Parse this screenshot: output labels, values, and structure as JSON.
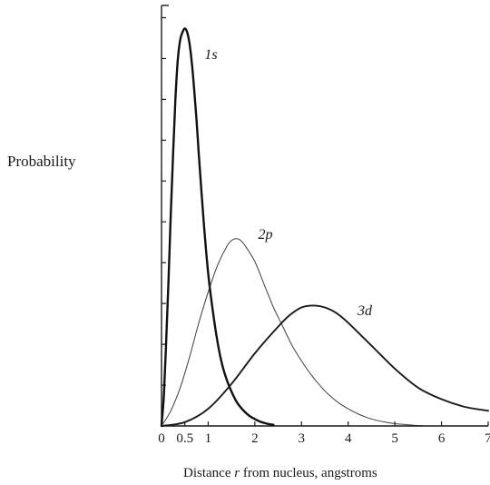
{
  "chart_data": {
    "type": "line",
    "title": "",
    "ylabel": "Probability",
    "xlabel": {
      "before": "Distance ",
      "var": "r",
      "after": " from nucleus, angstroms"
    },
    "xlim": [
      0,
      7
    ],
    "ylim": [
      0,
      1.1
    ],
    "y_ticks_unlabeled": true,
    "x_ticks": [
      {
        "value": 0,
        "label": "0"
      },
      {
        "value": 0.5,
        "label": "0.5"
      },
      {
        "value": 1,
        "label": "1"
      },
      {
        "value": 2,
        "label": "2"
      },
      {
        "value": 3,
        "label": "3"
      },
      {
        "value": 4,
        "label": "4"
      },
      {
        "value": 5,
        "label": "5"
      },
      {
        "value": 6,
        "label": "6"
      },
      {
        "value": 7,
        "label": "7"
      }
    ],
    "series": [
      {
        "name": "1s",
        "style": "thick",
        "label_at": {
          "x": 0.92,
          "y": 0.96
        },
        "x": [
          0,
          0.05,
          0.1,
          0.15,
          0.2,
          0.25,
          0.3,
          0.35,
          0.4,
          0.45,
          0.5,
          0.55,
          0.6,
          0.65,
          0.7,
          0.75,
          0.8,
          0.9,
          1.0,
          1.1,
          1.2,
          1.3,
          1.4,
          1.5,
          1.6,
          1.7,
          1.8,
          1.9,
          2.0,
          2.1,
          2.2,
          2.3,
          2.4
        ],
        "y": [
          0,
          0.08,
          0.22,
          0.38,
          0.56,
          0.72,
          0.86,
          0.96,
          1.01,
          1.03,
          1.04,
          1.03,
          1.0,
          0.95,
          0.88,
          0.8,
          0.71,
          0.54,
          0.4,
          0.3,
          0.22,
          0.16,
          0.12,
          0.09,
          0.065,
          0.048,
          0.035,
          0.025,
          0.018,
          0.012,
          0.008,
          0.005,
          0.003
        ]
      },
      {
        "name": "2p",
        "style": "thin",
        "label_at": {
          "x": 2.07,
          "y": 0.49
        },
        "x": [
          0,
          0.2,
          0.4,
          0.6,
          0.8,
          1.0,
          1.2,
          1.4,
          1.5,
          1.6,
          1.7,
          1.8,
          2.0,
          2.2,
          2.4,
          2.6,
          2.8,
          3.0,
          3.2,
          3.4,
          3.6,
          3.8,
          4.0,
          4.2,
          4.4,
          4.6,
          4.8,
          5.0,
          5.2,
          5.4,
          5.6
        ],
        "y": [
          0,
          0.04,
          0.1,
          0.18,
          0.27,
          0.35,
          0.42,
          0.47,
          0.485,
          0.49,
          0.485,
          0.47,
          0.43,
          0.37,
          0.31,
          0.26,
          0.21,
          0.17,
          0.135,
          0.105,
          0.08,
          0.06,
          0.045,
          0.032,
          0.022,
          0.015,
          0.01,
          0.006,
          0.004,
          0.002,
          0.001
        ]
      },
      {
        "name": "3d",
        "style": "medium",
        "label_at": {
          "x": 4.2,
          "y": 0.29
        },
        "x": [
          0,
          0.5,
          1.0,
          1.5,
          2.0,
          2.5,
          2.75,
          3.0,
          3.25,
          3.5,
          3.75,
          4.0,
          4.5,
          5.0,
          5.5,
          6.0,
          6.5,
          7.0
        ],
        "y": [
          0,
          0.01,
          0.045,
          0.11,
          0.19,
          0.26,
          0.29,
          0.31,
          0.315,
          0.31,
          0.295,
          0.27,
          0.21,
          0.15,
          0.1,
          0.07,
          0.05,
          0.04
        ]
      }
    ]
  }
}
